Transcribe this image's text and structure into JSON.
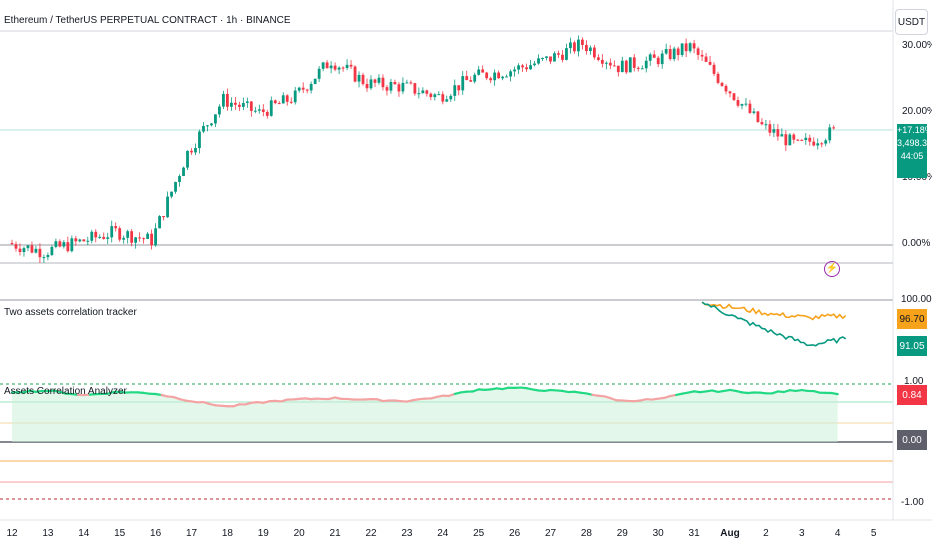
{
  "header": {
    "symbol_title": "Ethereum / TetherUS PERPETUAL CONTRACT · 1h · BINANCE",
    "currency_button": "USDT"
  },
  "colors": {
    "up": "#089981",
    "down": "#f23645",
    "orange": "#f7a21b",
    "teal": "#089981",
    "corr_pos": "#22d983",
    "corr_neg": "#f4a3a3",
    "red_badge": "#f23645",
    "gray_badge": "#5d606b"
  },
  "main_pane": {
    "y_axis_labels": [
      "30.00%",
      "20.00%",
      "10.00%",
      "0.00%"
    ],
    "last_change": "+17.18%",
    "last_price": "3,498.32",
    "countdown": "44:05",
    "icon": "lightning-icon"
  },
  "tracker_pane": {
    "title": "Two assets correlation tracker",
    "axis_label": "100.00",
    "badge_orange": "96.70",
    "badge_teal": "91.05"
  },
  "analyzer_pane": {
    "title": "Assets Correlation Analyzer",
    "axis_top": "1.00",
    "axis_bottom": "-1.00",
    "badge_value": "0.84",
    "badge_zero": "0.00"
  },
  "x_axis": {
    "labels": [
      "12",
      "13",
      "14",
      "15",
      "16",
      "17",
      "18",
      "19",
      "20",
      "21",
      "22",
      "23",
      "24",
      "25",
      "26",
      "27",
      "28",
      "29",
      "30",
      "31",
      "Aug",
      "2",
      "3",
      "4",
      "5"
    ]
  },
  "chart_data": [
    {
      "type": "line",
      "title": "Ethereum / TetherUS PERPETUAL CONTRACT · 1h · BINANCE",
      "y_unit": "percent change",
      "ylim": [
        -2,
        32
      ],
      "x": [
        "12",
        "13",
        "14",
        "15",
        "16",
        "17",
        "18",
        "19",
        "20",
        "21",
        "22",
        "23",
        "24",
        "25",
        "26",
        "27",
        "28",
        "29",
        "30",
        "31",
        "Aug",
        "2",
        "3",
        "4"
      ],
      "series": [
        {
          "values": [
            0.3,
            -1.0,
            0.5,
            2.0,
            0.7,
            14.0,
            22.0,
            20.0,
            22.5,
            28.0,
            24.5,
            24.0,
            22.5,
            25.5,
            26.5,
            28.0,
            30.5,
            27.0,
            28.0,
            30.0,
            24.0,
            18.0,
            15.0,
            17.18
          ]
        }
      ]
    },
    {
      "type": "line",
      "title": "Two assets correlation tracker",
      "x": [
        "31",
        "Aug",
        "2",
        "3",
        "4"
      ],
      "ylim": [
        85,
        101
      ],
      "series": [
        {
          "values": [
            100.0,
            98.5,
            97.0,
            96.2,
            96.7
          ]
        },
        {
          "values": [
            100.0,
            96.0,
            92.5,
            89.5,
            91.05
          ]
        }
      ]
    },
    {
      "type": "line",
      "title": "Assets Correlation Analyzer",
      "ylim": [
        -1,
        1
      ],
      "x": [
        "12",
        "13",
        "14",
        "15",
        "16",
        "17",
        "18",
        "19",
        "20",
        "21",
        "22",
        "23",
        "24",
        "25",
        "26",
        "27",
        "28",
        "29",
        "30",
        "31",
        "Aug",
        "2",
        "3",
        "4"
      ],
      "series": [
        {
          "values": [
            0.88,
            0.9,
            0.82,
            0.88,
            0.85,
            0.72,
            0.62,
            0.7,
            0.75,
            0.77,
            0.74,
            0.72,
            0.8,
            0.92,
            0.95,
            0.9,
            0.86,
            0.72,
            0.75,
            0.88,
            0.9,
            0.85,
            0.92,
            0.84
          ]
        }
      ]
    }
  ]
}
